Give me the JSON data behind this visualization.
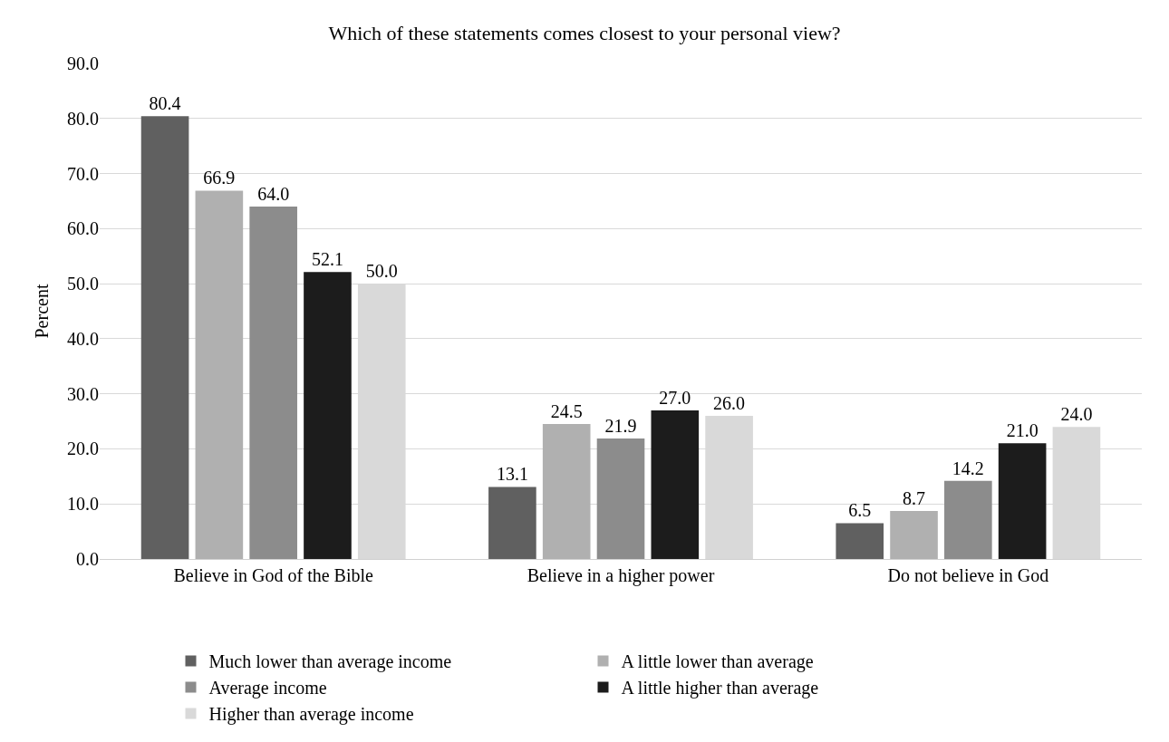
{
  "chart_data": {
    "type": "bar",
    "title": "Which of these statements comes closest to your personal view?",
    "ylabel": "Percent",
    "categories": [
      "Believe in God of the Bible",
      "Believe in a higher power",
      "Do not believe in God"
    ],
    "series": [
      {
        "name": "Much lower than average income",
        "color": "#606060",
        "values": [
          80.4,
          13.1,
          6.5
        ],
        "value_labels": [
          "80.4",
          "13.1",
          "6.5"
        ]
      },
      {
        "name": "A little lower than average",
        "color": "#b0b0b0",
        "values": [
          66.9,
          24.5,
          8.7
        ],
        "value_labels": [
          "66.9",
          "24.5",
          "8.7"
        ]
      },
      {
        "name": "Average income",
        "color": "#8c8c8c",
        "values": [
          64.0,
          21.9,
          14.2
        ],
        "value_labels": [
          "64.0",
          "21.9",
          "14.2"
        ]
      },
      {
        "name": "A little higher than average",
        "color": "#1c1c1c",
        "values": [
          52.1,
          27.0,
          21.0
        ],
        "value_labels": [
          "52.1",
          "27.0",
          "21.0"
        ]
      },
      {
        "name": "Higher than average income",
        "color": "#d9d9d9",
        "values": [
          50.0,
          26.0,
          24.0
        ],
        "value_labels": [
          "50.0",
          "26.0",
          "24.0"
        ]
      }
    ],
    "ylim": [
      0,
      90
    ],
    "yticks": [
      {
        "value": 0,
        "label": "0.0"
      },
      {
        "value": 10,
        "label": "10.0"
      },
      {
        "value": 20,
        "label": "20.0"
      },
      {
        "value": 30,
        "label": "30.0"
      },
      {
        "value": 40,
        "label": "40.0"
      },
      {
        "value": 50,
        "label": "50.0"
      },
      {
        "value": 60,
        "label": "60.0"
      },
      {
        "value": 70,
        "label": "70.0"
      },
      {
        "value": 80,
        "label": "80.0"
      },
      {
        "value": 90,
        "label": "90.0"
      }
    ],
    "grid": "y",
    "legend": "bottom"
  }
}
